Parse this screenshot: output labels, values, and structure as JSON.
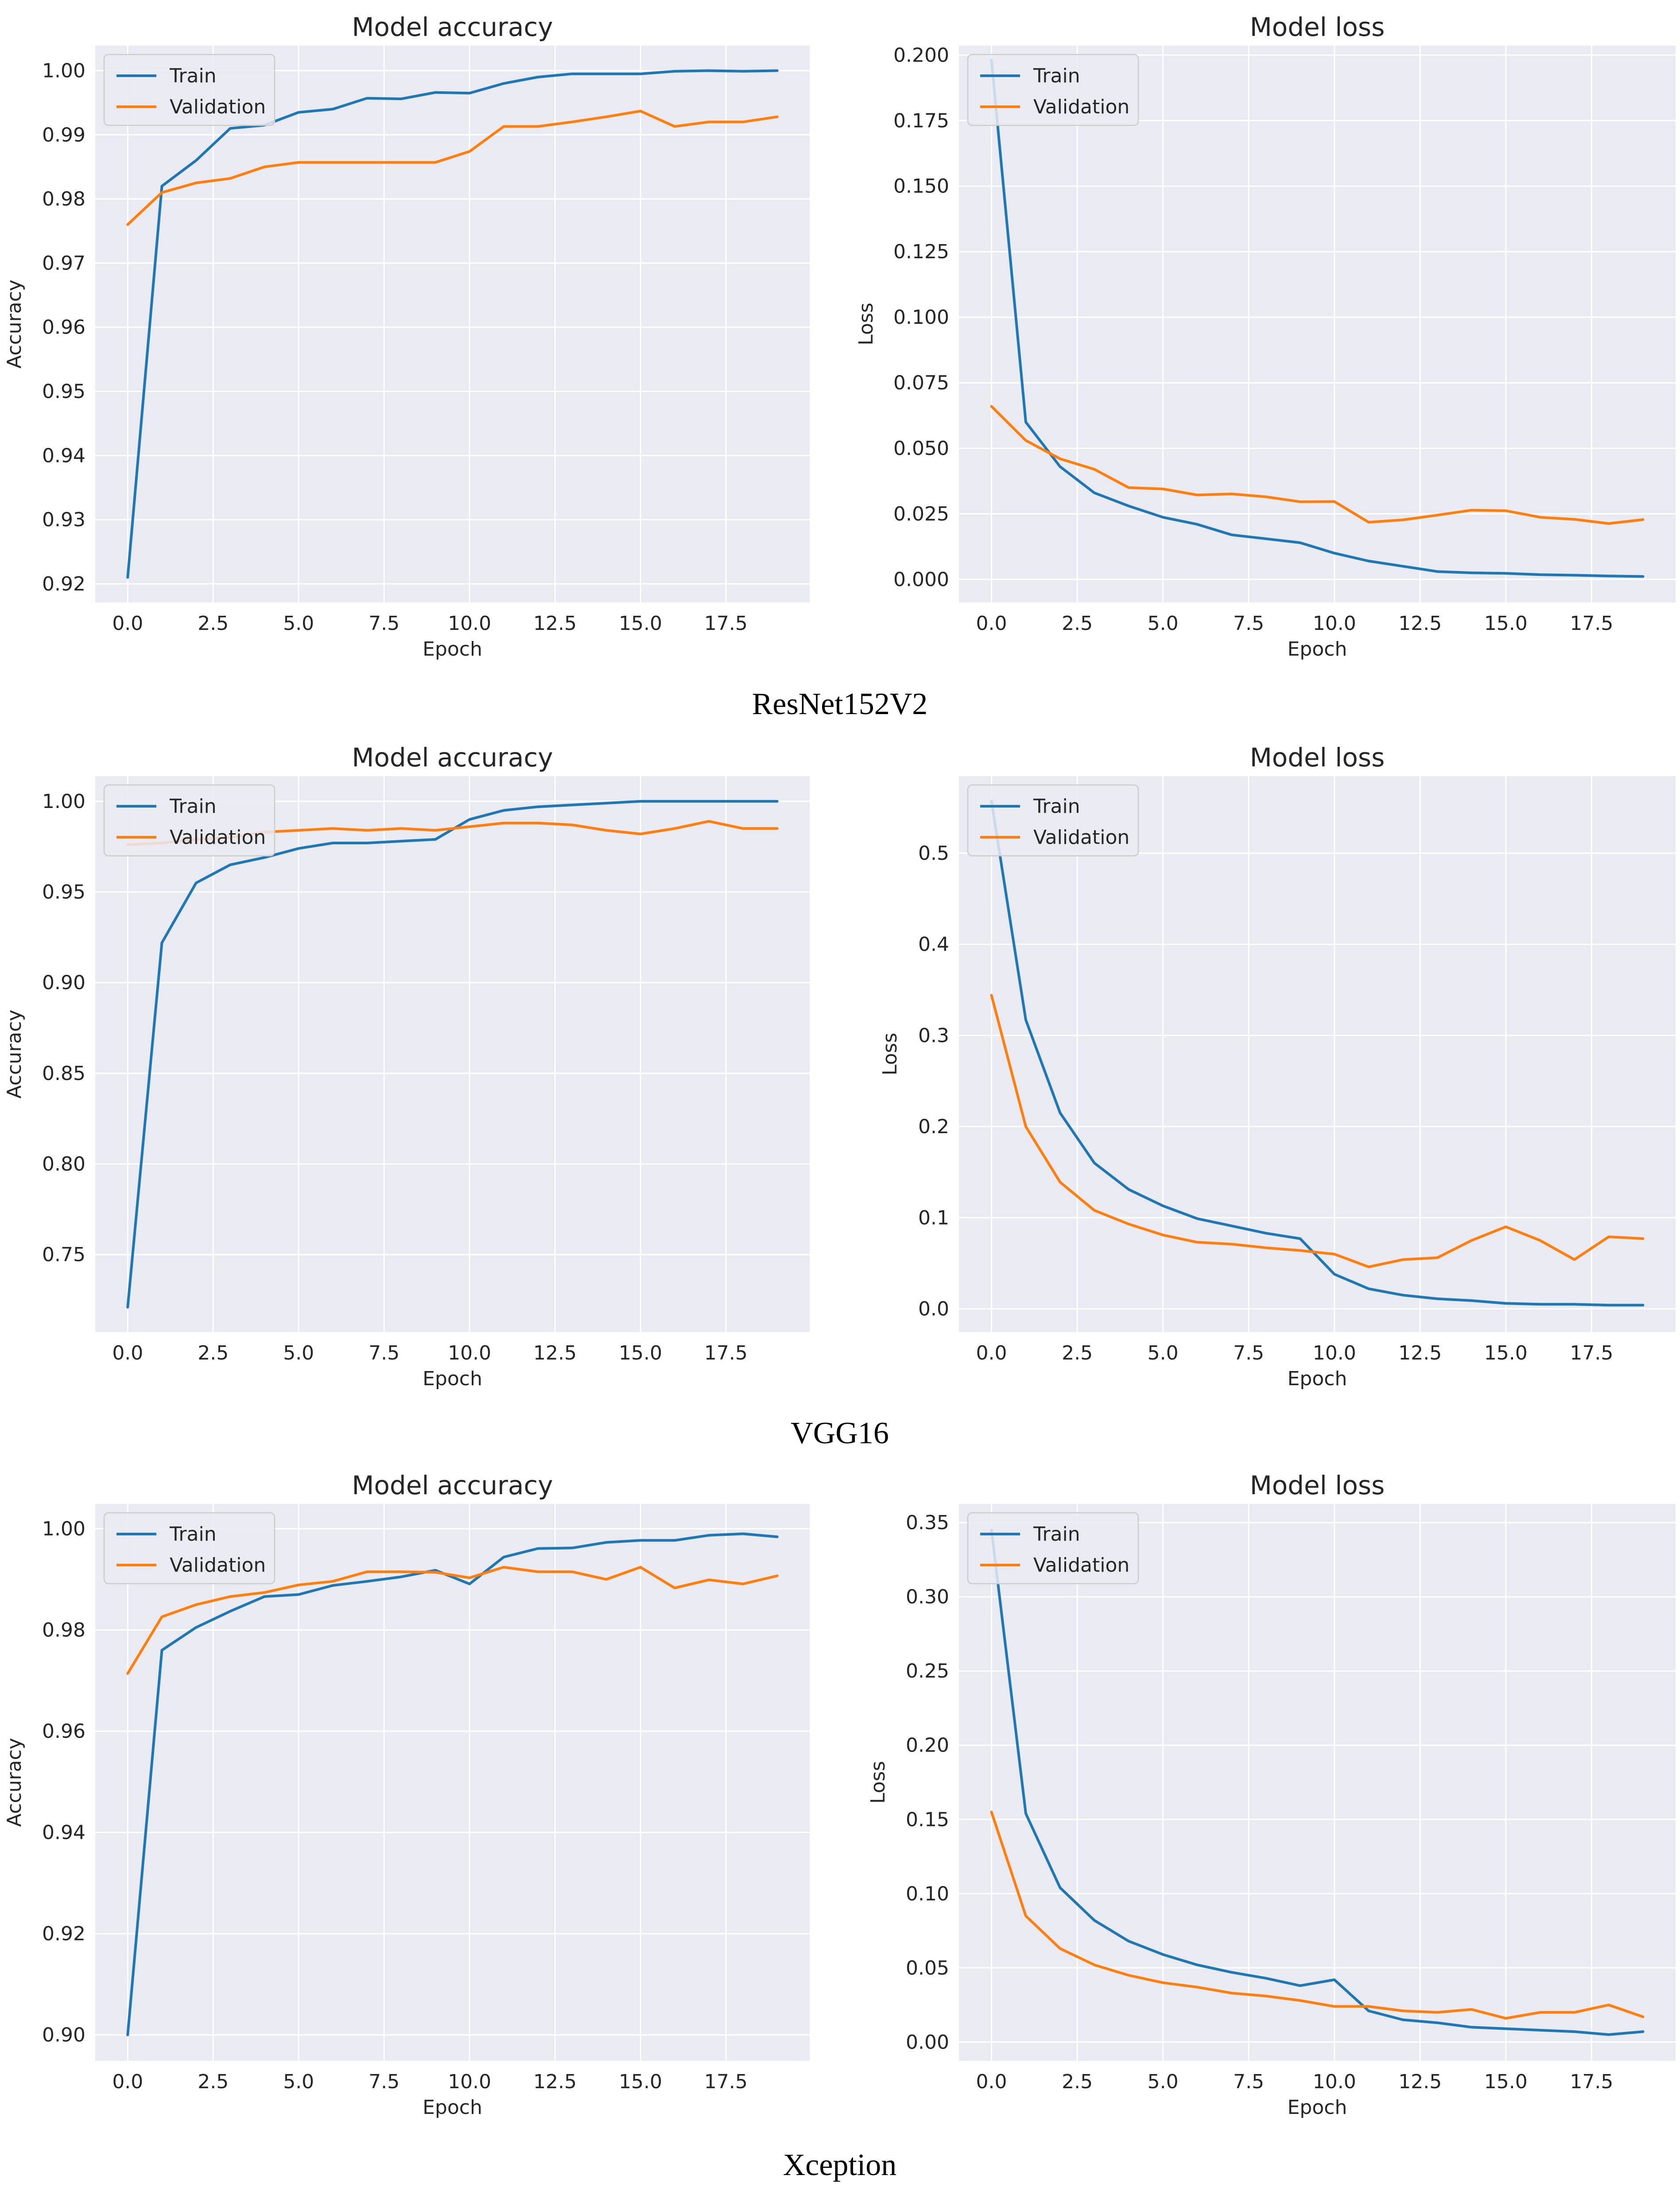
{
  "colors": {
    "train": "#1f77b4",
    "validation": "#ff7f0e",
    "plot_bg": "#eaeaf2",
    "grid": "#ffffff"
  },
  "captions": [
    "ResNet152V2",
    "VGG16",
    "Xception"
  ],
  "chart_data": [
    {
      "type": "line",
      "model": "ResNet152V2",
      "title": "Model accuracy",
      "xlabel": "Epoch",
      "ylabel": "Accuracy",
      "xlim": [
        -0.95,
        19.95
      ],
      "ylim": [
        0.9171,
        1.0039
      ],
      "xticks": [
        0,
        2.5,
        5,
        7.5,
        10,
        12.5,
        15,
        17.5
      ],
      "xtick_labels": [
        "0.0",
        "2.5",
        "5.0",
        "7.5",
        "10.0",
        "12.5",
        "15.0",
        "17.5"
      ],
      "yticks": [
        0.92,
        0.93,
        0.94,
        0.95,
        0.96,
        0.97,
        0.98,
        0.99,
        1.0
      ],
      "ytick_labels": [
        "0.92",
        "0.93",
        "0.94",
        "0.95",
        "0.96",
        "0.97",
        "0.98",
        "0.99",
        "1.00"
      ],
      "legend": [
        "Train",
        "Validation"
      ],
      "x": [
        0,
        1,
        2,
        3,
        4,
        5,
        6,
        7,
        8,
        9,
        10,
        11,
        12,
        13,
        14,
        15,
        16,
        17,
        18,
        19
      ],
      "series": [
        {
          "name": "Train",
          "values": [
            0.921,
            0.982,
            0.986,
            0.991,
            0.9915,
            0.9935,
            0.994,
            0.9957,
            0.9956,
            0.9966,
            0.9965,
            0.998,
            0.999,
            0.9995,
            0.9995,
            0.9995,
            0.9999,
            1.0,
            0.9999,
            1.0
          ]
        },
        {
          "name": "Validation",
          "values": [
            0.976,
            0.981,
            0.9825,
            0.9832,
            0.985,
            0.9857,
            0.9857,
            0.9857,
            0.9857,
            0.9857,
            0.9874,
            0.9913,
            0.9913,
            0.992,
            0.9928,
            0.9937,
            0.9913,
            0.992,
            0.992,
            0.9928
          ]
        }
      ]
    },
    {
      "type": "line",
      "model": "ResNet152V2",
      "title": "Model loss",
      "xlabel": "Epoch",
      "ylabel": "Loss",
      "xlim": [
        -0.95,
        19.95
      ],
      "ylim": [
        -0.0088,
        0.2036
      ],
      "xticks": [
        0,
        2.5,
        5,
        7.5,
        10,
        12.5,
        15,
        17.5
      ],
      "xtick_labels": [
        "0.0",
        "2.5",
        "5.0",
        "7.5",
        "10.0",
        "12.5",
        "15.0",
        "17.5"
      ],
      "yticks": [
        0,
        0.025,
        0.05,
        0.075,
        0.1,
        0.125,
        0.15,
        0.175,
        0.2
      ],
      "ytick_labels": [
        "0.000",
        "0.025",
        "0.050",
        "0.075",
        "0.100",
        "0.125",
        "0.150",
        "0.175",
        "0.200"
      ],
      "legend": [
        "Train",
        "Validation"
      ],
      "x": [
        0,
        1,
        2,
        3,
        4,
        5,
        6,
        7,
        8,
        9,
        10,
        11,
        12,
        13,
        14,
        15,
        16,
        17,
        18,
        19
      ],
      "series": [
        {
          "name": "Train",
          "values": [
            0.198,
            0.06,
            0.043,
            0.033,
            0.028,
            0.0237,
            0.021,
            0.017,
            0.0155,
            0.014,
            0.01,
            0.007,
            0.005,
            0.003,
            0.0025,
            0.0023,
            0.0018,
            0.0016,
            0.0013,
            0.0011
          ]
        },
        {
          "name": "Validation",
          "values": [
            0.066,
            0.053,
            0.046,
            0.042,
            0.035,
            0.0345,
            0.0322,
            0.0326,
            0.0315,
            0.0296,
            0.0297,
            0.0218,
            0.0227,
            0.0245,
            0.0264,
            0.0262,
            0.0237,
            0.0229,
            0.0213,
            0.0228
          ]
        }
      ]
    },
    {
      "type": "line",
      "model": "VGG16",
      "title": "Model accuracy",
      "xlabel": "Epoch",
      "ylabel": "Accuracy",
      "xlim": [
        -0.95,
        19.95
      ],
      "ylim": [
        0.7073,
        1.0139
      ],
      "xticks": [
        0,
        2.5,
        5,
        7.5,
        10,
        12.5,
        15,
        17.5
      ],
      "xtick_labels": [
        "0.0",
        "2.5",
        "5.0",
        "7.5",
        "10.0",
        "12.5",
        "15.0",
        "17.5"
      ],
      "yticks": [
        0.75,
        0.8,
        0.85,
        0.9,
        0.95,
        1.0
      ],
      "ytick_labels": [
        "0.75",
        "0.80",
        "0.85",
        "0.90",
        "0.95",
        "1.00"
      ],
      "legend": [
        "Train",
        "Validation"
      ],
      "x": [
        0,
        1,
        2,
        3,
        4,
        5,
        6,
        7,
        8,
        9,
        10,
        11,
        12,
        13,
        14,
        15,
        16,
        17,
        18,
        19
      ],
      "series": [
        {
          "name": "Train",
          "values": [
            0.721,
            0.922,
            0.955,
            0.965,
            0.969,
            0.974,
            0.977,
            0.977,
            0.978,
            0.979,
            0.99,
            0.995,
            0.997,
            0.998,
            0.999,
            1.0,
            1.0,
            1.0,
            1.0,
            1.0
          ]
        },
        {
          "name": "Validation",
          "values": [
            0.976,
            0.977,
            0.979,
            0.98,
            0.983,
            0.984,
            0.985,
            0.984,
            0.985,
            0.984,
            0.986,
            0.988,
            0.988,
            0.987,
            0.984,
            0.982,
            0.985,
            0.989,
            0.985,
            0.985
          ]
        }
      ]
    },
    {
      "type": "line",
      "model": "VGG16",
      "title": "Model loss",
      "xlabel": "Epoch",
      "ylabel": "Loss",
      "xlim": [
        -0.95,
        19.95
      ],
      "ylim": [
        -0.0255,
        0.5845
      ],
      "xticks": [
        0,
        2.5,
        5,
        7.5,
        10,
        12.5,
        15,
        17.5
      ],
      "xtick_labels": [
        "0.0",
        "2.5",
        "5.0",
        "7.5",
        "10.0",
        "12.5",
        "15.0",
        "17.5"
      ],
      "yticks": [
        0,
        0.1,
        0.2,
        0.3,
        0.4,
        0.5
      ],
      "ytick_labels": [
        "0.0",
        "0.1",
        "0.2",
        "0.3",
        "0.4",
        "0.5"
      ],
      "legend": [
        "Train",
        "Validation"
      ],
      "x": [
        0,
        1,
        2,
        3,
        4,
        5,
        6,
        7,
        8,
        9,
        10,
        11,
        12,
        13,
        14,
        15,
        16,
        17,
        18,
        19
      ],
      "series": [
        {
          "name": "Train",
          "values": [
            0.557,
            0.317,
            0.215,
            0.16,
            0.131,
            0.113,
            0.099,
            0.091,
            0.083,
            0.077,
            0.038,
            0.022,
            0.015,
            0.011,
            0.009,
            0.006,
            0.005,
            0.005,
            0.004,
            0.004
          ]
        },
        {
          "name": "Validation",
          "values": [
            0.344,
            0.2,
            0.139,
            0.108,
            0.093,
            0.081,
            0.073,
            0.071,
            0.067,
            0.064,
            0.06,
            0.046,
            0.054,
            0.056,
            0.075,
            0.09,
            0.075,
            0.054,
            0.079,
            0.077
          ]
        }
      ]
    },
    {
      "type": "line",
      "model": "Xception",
      "title": "Model accuracy",
      "xlabel": "Epoch",
      "ylabel": "Accuracy",
      "xlim": [
        -0.95,
        19.95
      ],
      "ylim": [
        0.8949,
        1.0049
      ],
      "xticks": [
        0,
        2.5,
        5,
        7.5,
        10,
        12.5,
        15,
        17.5
      ],
      "xtick_labels": [
        "0.0",
        "2.5",
        "5.0",
        "7.5",
        "10.0",
        "12.5",
        "15.0",
        "17.5"
      ],
      "yticks": [
        0.9,
        0.92,
        0.94,
        0.96,
        0.98,
        1.0
      ],
      "ytick_labels": [
        "0.90",
        "0.92",
        "0.94",
        "0.96",
        "0.98",
        "1.00"
      ],
      "legend": [
        "Train",
        "Validation"
      ],
      "x": [
        0,
        1,
        2,
        3,
        4,
        5,
        6,
        7,
        8,
        9,
        10,
        11,
        12,
        13,
        14,
        15,
        16,
        17,
        18,
        19
      ],
      "series": [
        {
          "name": "Train",
          "values": [
            0.9,
            0.976,
            0.9805,
            0.9837,
            0.9866,
            0.987,
            0.9888,
            0.9896,
            0.9905,
            0.9918,
            0.9891,
            0.9944,
            0.9961,
            0.9962,
            0.9973,
            0.9977,
            0.9977,
            0.9987,
            0.999,
            0.9984
          ]
        },
        {
          "name": "Validation",
          "values": [
            0.9714,
            0.9826,
            0.985,
            0.9866,
            0.9874,
            0.9889,
            0.9896,
            0.9915,
            0.9915,
            0.9914,
            0.9903,
            0.9924,
            0.9915,
            0.9915,
            0.99,
            0.9924,
            0.9883,
            0.9899,
            0.9891,
            0.9907
          ]
        }
      ]
    },
    {
      "type": "line",
      "model": "Xception",
      "title": "Model loss",
      "xlabel": "Epoch",
      "ylabel": "Loss",
      "xlim": [
        -0.95,
        19.95
      ],
      "ylim": [
        -0.0126,
        0.3626
      ],
      "xticks": [
        0,
        2.5,
        5,
        7.5,
        10,
        12.5,
        15,
        17.5
      ],
      "xtick_labels": [
        "0.0",
        "2.5",
        "5.0",
        "7.5",
        "10.0",
        "12.5",
        "15.0",
        "17.5"
      ],
      "yticks": [
        0,
        0.05,
        0.1,
        0.15,
        0.2,
        0.25,
        0.3,
        0.35
      ],
      "ytick_labels": [
        "0.00",
        "0.05",
        "0.10",
        "0.15",
        "0.20",
        "0.25",
        "0.30",
        "0.35"
      ],
      "legend": [
        "Train",
        "Validation"
      ],
      "x": [
        0,
        1,
        2,
        3,
        4,
        5,
        6,
        7,
        8,
        9,
        10,
        11,
        12,
        13,
        14,
        15,
        16,
        17,
        18,
        19
      ],
      "series": [
        {
          "name": "Train",
          "values": [
            0.345,
            0.154,
            0.104,
            0.082,
            0.068,
            0.059,
            0.052,
            0.047,
            0.043,
            0.038,
            0.042,
            0.021,
            0.015,
            0.013,
            0.01,
            0.009,
            0.008,
            0.007,
            0.005,
            0.007
          ]
        },
        {
          "name": "Validation",
          "values": [
            0.155,
            0.085,
            0.063,
            0.052,
            0.045,
            0.04,
            0.037,
            0.033,
            0.031,
            0.028,
            0.024,
            0.024,
            0.021,
            0.02,
            0.022,
            0.016,
            0.02,
            0.02,
            0.025,
            0.017
          ]
        }
      ]
    }
  ]
}
